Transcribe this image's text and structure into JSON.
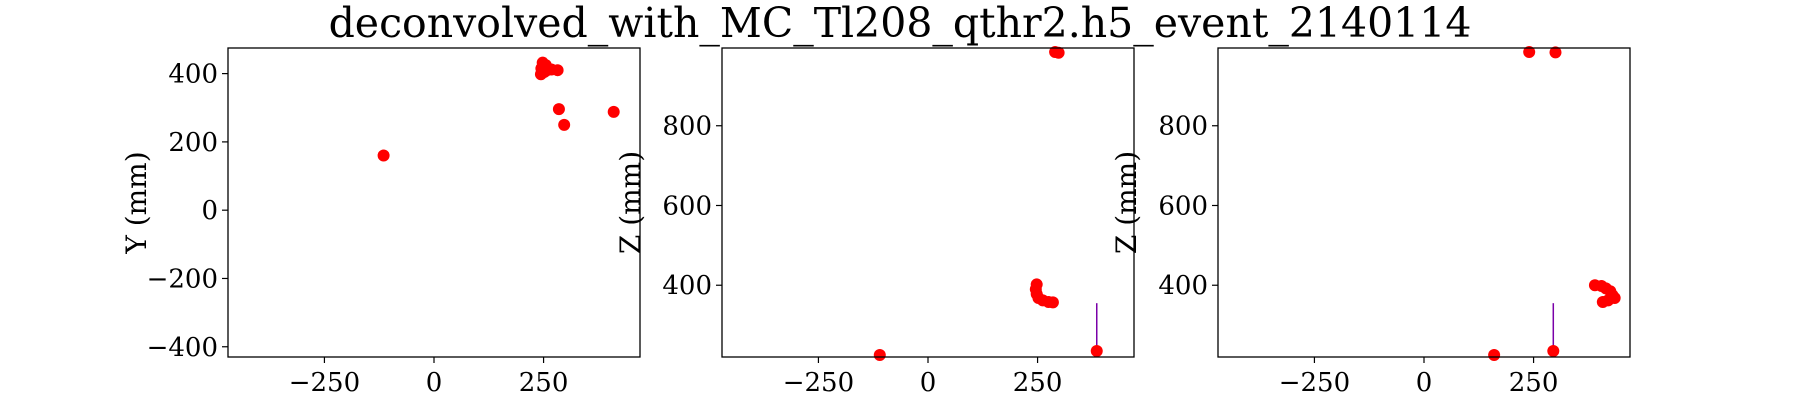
{
  "title": "deconvolved_with_MC_Tl208_qthr2.h5_event_2140114",
  "chart_data": [
    {
      "type": "scatter",
      "xlabel": "",
      "ylabel": "Y (mm)",
      "xlim": [
        -470,
        470
      ],
      "ylim": [
        -430,
        475
      ],
      "xticks": [
        -250,
        0,
        250
      ],
      "yticks": [
        -400,
        -200,
        0,
        200,
        400
      ],
      "grid": false,
      "points": [
        {
          "x": -115,
          "y": 160
        },
        {
          "x": 248,
          "y": 432
        },
        {
          "x": 255,
          "y": 425
        },
        {
          "x": 245,
          "y": 415
        },
        {
          "x": 252,
          "y": 405
        },
        {
          "x": 244,
          "y": 398
        },
        {
          "x": 258,
          "y": 410
        },
        {
          "x": 268,
          "y": 412
        },
        {
          "x": 282,
          "y": 410
        },
        {
          "x": 285,
          "y": 296
        },
        {
          "x": 297,
          "y": 250
        },
        {
          "x": 410,
          "y": 288
        }
      ],
      "stems": []
    },
    {
      "type": "scatter",
      "xlabel": "",
      "ylabel": "Z (mm)",
      "xlim": [
        -470,
        470
      ],
      "ylim": [
        220,
        995
      ],
      "xticks": [
        -250,
        0,
        250
      ],
      "yticks": [
        400,
        600,
        800
      ],
      "grid": false,
      "points": [
        {
          "x": 290,
          "y": 985
        },
        {
          "x": 298,
          "y": 983
        },
        {
          "x": 248,
          "y": 402
        },
        {
          "x": 246,
          "y": 390
        },
        {
          "x": 248,
          "y": 378
        },
        {
          "x": 252,
          "y": 368
        },
        {
          "x": 262,
          "y": 362
        },
        {
          "x": 275,
          "y": 358
        },
        {
          "x": 285,
          "y": 357
        },
        {
          "x": -110,
          "y": 225
        },
        {
          "x": 385,
          "y": 235
        }
      ],
      "stems": [
        {
          "x": 385,
          "y0": 235,
          "y1": 355
        }
      ]
    },
    {
      "type": "scatter",
      "xlabel": "",
      "ylabel": "Z (mm)",
      "xlim": [
        -470,
        470
      ],
      "ylim": [
        220,
        995
      ],
      "xticks": [
        -250,
        0,
        250
      ],
      "yticks": [
        400,
        600,
        800
      ],
      "grid": false,
      "points": [
        {
          "x": 240,
          "y": 985
        },
        {
          "x": 300,
          "y": 984
        },
        {
          "x": 390,
          "y": 400
        },
        {
          "x": 405,
          "y": 398
        },
        {
          "x": 415,
          "y": 392
        },
        {
          "x": 425,
          "y": 385
        },
        {
          "x": 430,
          "y": 375
        },
        {
          "x": 435,
          "y": 368
        },
        {
          "x": 420,
          "y": 362
        },
        {
          "x": 408,
          "y": 358
        },
        {
          "x": 160,
          "y": 225
        },
        {
          "x": 295,
          "y": 235
        }
      ],
      "stems": [
        {
          "x": 295,
          "y0": 235,
          "y1": 355
        }
      ]
    }
  ]
}
